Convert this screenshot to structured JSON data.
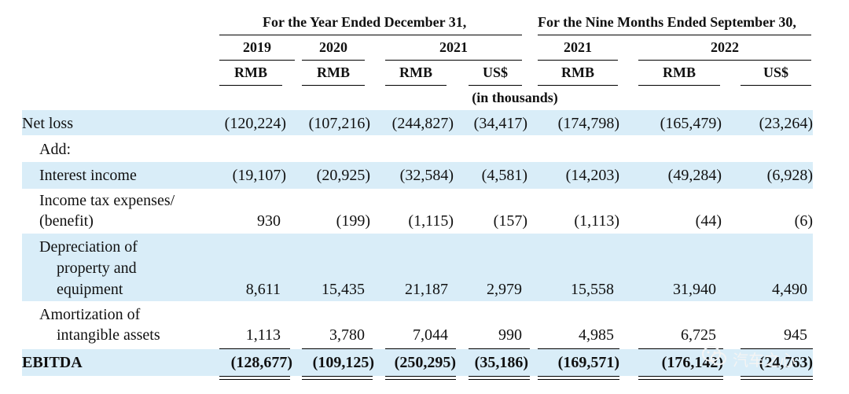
{
  "header": {
    "year_group": "For the Year Ended December 31,",
    "nine_group": "For the Nine Months Ended September 30,",
    "years": [
      "2019",
      "2020",
      "2021",
      "2021",
      "2022"
    ],
    "currencies": [
      "RMB",
      "RMB",
      "RMB",
      "US$",
      "RMB",
      "RMB",
      "US$"
    ],
    "unit_note": "(in thousands)"
  },
  "rows": [
    {
      "label_lines": [
        "Net loss"
      ],
      "values": [
        "(120,224)",
        "(107,216)",
        "(244,827)",
        "(34,417)",
        "(174,798)",
        "(165,479)",
        "(23,264)"
      ],
      "shaded": true
    },
    {
      "label_lines": [
        "Add:"
      ],
      "values": [
        "",
        "",
        "",
        "",
        "",
        "",
        ""
      ],
      "shaded": false
    },
    {
      "label_lines": [
        "Interest income"
      ],
      "values": [
        "(19,107)",
        "(20,925)",
        "(32,584)",
        "(4,581)",
        "(14,203)",
        "(49,284)",
        "(6,928)"
      ],
      "shaded": true
    },
    {
      "label_lines": [
        "Income tax expenses/",
        "(benefit)"
      ],
      "values": [
        "930",
        "(199)",
        "(1,115)",
        "(157)",
        "(1,113)",
        "(44)",
        "(6)"
      ],
      "shaded": false
    },
    {
      "label_lines": [
        "Depreciation of",
        "property and",
        "equipment"
      ],
      "values": [
        "8,611",
        "15,435",
        "21,187",
        "2,979",
        "15,558",
        "31,940",
        "4,490"
      ],
      "shaded": true
    },
    {
      "label_lines": [
        "Amortization of",
        "intangible assets"
      ],
      "values": [
        "1,113",
        "3,780",
        "7,044",
        "990",
        "4,985",
        "6,725",
        "945"
      ],
      "shaded": false
    },
    {
      "label_lines": [
        "EBITDA"
      ],
      "values": [
        "(128,677)",
        "(109,125)",
        "(250,295)",
        "(35,186)",
        "(169,571)",
        "(176,142)",
        "(24,763)"
      ],
      "shaded": true,
      "bold": true
    }
  ],
  "watermark": {
    "text": "汽车之心"
  }
}
